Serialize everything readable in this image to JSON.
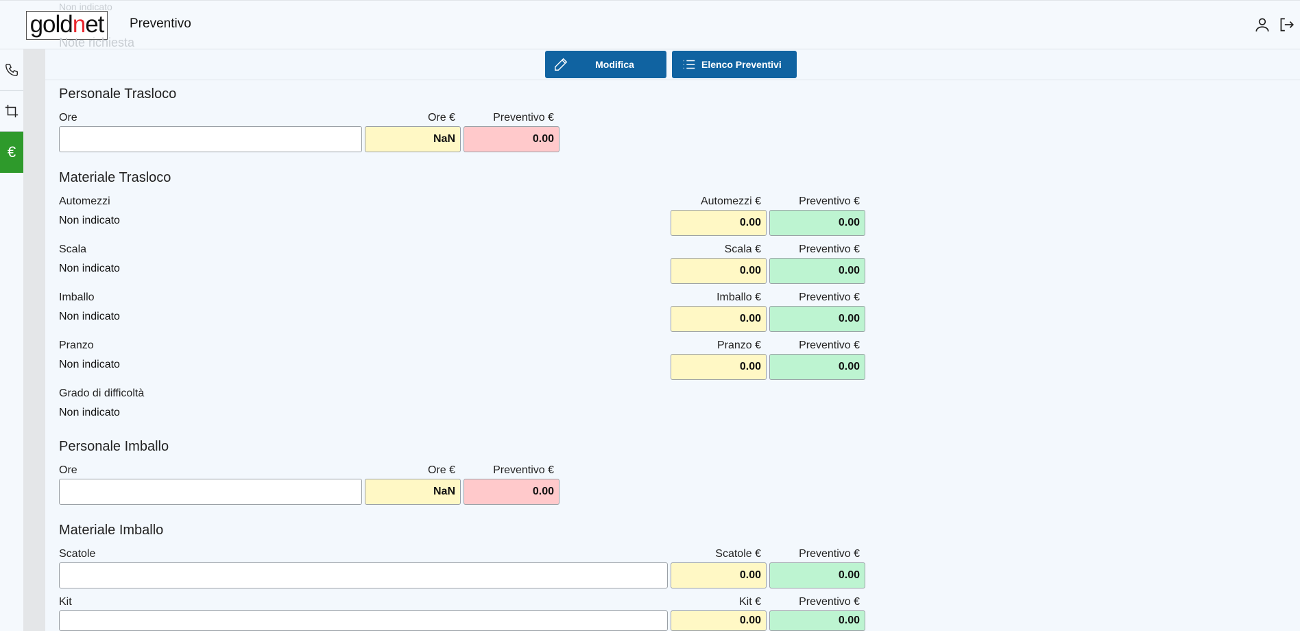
{
  "header": {
    "logo_pre": "gold",
    "logo_n": "n",
    "logo_post": "et",
    "title": "Preventivo",
    "ghost_top": "Non indicato",
    "ghost_note": "Note richiesta"
  },
  "sidebar": {
    "euro_glyph": "€"
  },
  "actions": {
    "modifica_label": "Modifica",
    "elenco_label": "Elenco Preventivi"
  },
  "personale_trasloco": {
    "title": "Personale Trasloco",
    "ore_label": "Ore",
    "ore_value": "",
    "ore_euro_label": "Ore €",
    "ore_euro_value": "NaN",
    "preventivo_label": "Preventivo €",
    "preventivo_value": "0.00"
  },
  "materiale_trasloco": {
    "title": "Materiale Trasloco",
    "items": [
      {
        "label": "Automezzi",
        "value": "Non indicato",
        "price_label": "Automezzi €",
        "price": "0.00",
        "prev_label": "Preventivo €",
        "prev": "0.00"
      },
      {
        "label": "Scala",
        "value": "Non indicato",
        "price_label": "Scala €",
        "price": "0.00",
        "prev_label": "Preventivo €",
        "prev": "0.00"
      },
      {
        "label": "Imballo",
        "value": "Non indicato",
        "price_label": "Imballo €",
        "price": "0.00",
        "prev_label": "Preventivo €",
        "prev": "0.00"
      },
      {
        "label": "Pranzo",
        "value": "Non indicato",
        "price_label": "Pranzo €",
        "price": "0.00",
        "prev_label": "Preventivo €",
        "prev": "0.00"
      }
    ],
    "difficolta_label": "Grado di difficoltà",
    "difficolta_value": "Non indicato"
  },
  "personale_imballo": {
    "title": "Personale Imballo",
    "ore_label": "Ore",
    "ore_value": "",
    "ore_euro_label": "Ore €",
    "ore_euro_value": "NaN",
    "preventivo_label": "Preventivo €",
    "preventivo_value": "0.00"
  },
  "materiale_imballo": {
    "title": "Materiale Imballo",
    "items": [
      {
        "label": "Scatole",
        "value": "",
        "price_label": "Scatole €",
        "price": "0.00",
        "prev_label": "Preventivo €",
        "prev": "0.00"
      },
      {
        "label": "Kit",
        "value": "",
        "price_label": "Kit €",
        "price": "0.00",
        "prev_label": "Preventivo €",
        "prev": "0.00"
      }
    ]
  },
  "colors": {
    "primary_button": "#1063a1",
    "active_sidebar": "#2e9a2b",
    "field_yellow": "#fff8c5",
    "field_red": "#ffc9cb",
    "field_green": "#bdf4d1"
  }
}
